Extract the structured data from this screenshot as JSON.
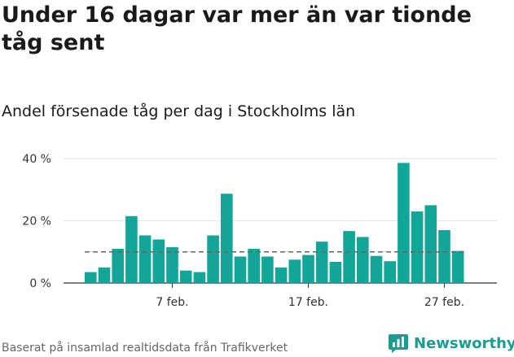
{
  "title": "Under 16 dagar var mer än var tionde tåg sent",
  "subtitle": "Andel försenade tåg per dag i Stockholms län",
  "footer": "Baserat på insamlad realtidsdata från Trafikverket",
  "logo": {
    "text": "Newsworthy",
    "icon": "newsworthy-logo-icon"
  },
  "colors": {
    "bar": "#13a597",
    "reference_line": "#666666",
    "grid": "#e6e6e6"
  },
  "chart_data": {
    "type": "bar",
    "title": "Andel försenade tåg per dag i Stockholms län",
    "unit": "%",
    "ylim": [
      0,
      40
    ],
    "yticks": [
      0,
      20,
      40
    ],
    "ytick_labels": [
      "0 %",
      "20 %",
      "40 %"
    ],
    "grid": true,
    "categories": [
      "1 feb.",
      "2 feb.",
      "3 feb.",
      "4 feb.",
      "5 feb.",
      "6 feb.",
      "7 feb.",
      "8 feb.",
      "9 feb.",
      "10 feb.",
      "11 feb.",
      "12 feb.",
      "13 feb.",
      "14 feb.",
      "15 feb.",
      "16 feb.",
      "17 feb.",
      "18 feb.",
      "19 feb.",
      "20 feb.",
      "21 feb.",
      "22 feb.",
      "23 feb.",
      "24 feb.",
      "25 feb.",
      "26 feb.",
      "27 feb.",
      "28 feb."
    ],
    "values": [
      3.5,
      5,
      11,
      21.5,
      15.3,
      14,
      11.5,
      4,
      3.5,
      15.3,
      28.7,
      8.5,
      11,
      8.5,
      5,
      7.5,
      9,
      13.3,
      6.8,
      16.7,
      14.8,
      8.7,
      7,
      38.6,
      23,
      25,
      17,
      10.3
    ],
    "xtick_labels": [
      "7 feb.",
      "17 feb.",
      "27 feb."
    ],
    "xtick_positions": [
      7,
      17,
      27
    ],
    "reference_line": 10
  }
}
